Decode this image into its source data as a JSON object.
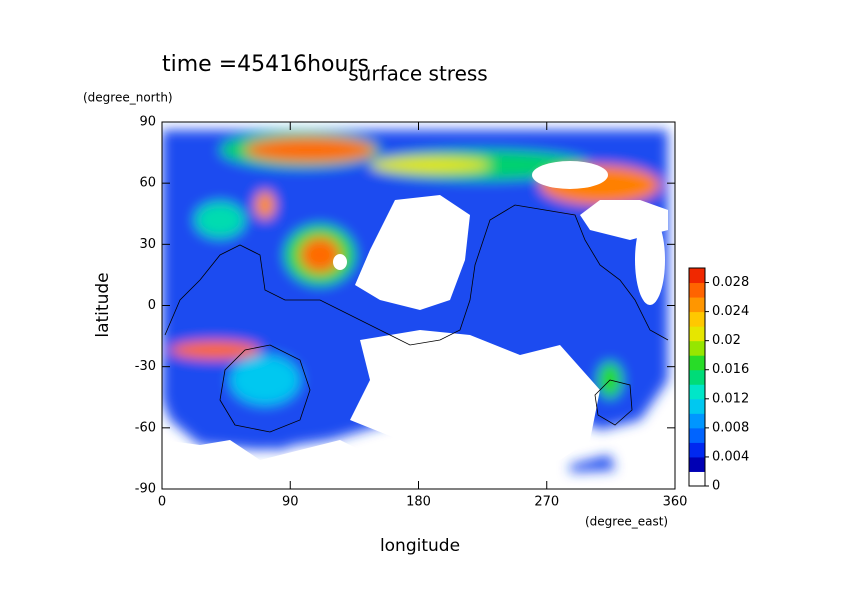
{
  "chart_data": {
    "type": "contour",
    "title": "surface stress",
    "subtitle": "time =45416hours",
    "x_label": "longitude",
    "x_unit": "(degree_east)",
    "y_label": "latitude",
    "y_unit": "(degree_north)",
    "xlim": [
      0,
      360
    ],
    "xticks": [
      0,
      90,
      180,
      270,
      360
    ],
    "ylim": [
      -90,
      90
    ],
    "yticks": [
      -90,
      -60,
      -30,
      0,
      30,
      60,
      90
    ],
    "clim": [
      0,
      0.03
    ],
    "cticks": [
      0,
      0.004,
      0.008,
      0.012,
      0.016,
      0.02,
      0.024,
      0.028
    ],
    "colors": [
      "#ffffff",
      "#0000b4",
      "#0028f0",
      "#0064ff",
      "#0096ff",
      "#00c8f0",
      "#00e6c8",
      "#00dc78",
      "#28dc28",
      "#96e600",
      "#e6e600",
      "#ffc800",
      "#ff9600",
      "#ff6400",
      "#f02800"
    ]
  }
}
